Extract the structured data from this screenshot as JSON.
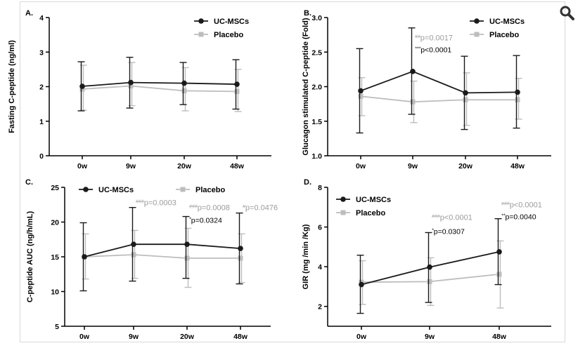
{
  "toolbar": {
    "zoom_icon": "magnifier-icon"
  },
  "colors": {
    "uc_mscs": "#1a1a1a",
    "placebo": "#bdbdbd",
    "annotation_gray": "#9b9b9b"
  },
  "chart_data": [
    {
      "panel": "A.",
      "type": "line",
      "ylabel": "Fasting C-peptide (ng/ml)",
      "categories": [
        "0w",
        "9w",
        "20w",
        "48w"
      ],
      "ylim": [
        0,
        4
      ],
      "yticks": [
        "0",
        "1",
        "2",
        "3",
        "4"
      ],
      "legend": [
        "UC-MSCs",
        "Placebo"
      ],
      "legend_position": "top-right",
      "series": [
        {
          "name": "UC-MSCs",
          "values": [
            2.01,
            2.12,
            2.1,
            2.07
          ],
          "err_low": [
            1.3,
            1.38,
            1.48,
            1.35
          ],
          "err_high": [
            2.72,
            2.85,
            2.7,
            2.78
          ]
        },
        {
          "name": "Placebo",
          "values": [
            1.93,
            2.02,
            1.88,
            1.86
          ],
          "err_low": [
            1.32,
            1.45,
            1.3,
            1.28
          ],
          "err_high": [
            2.62,
            2.7,
            2.55,
            2.5
          ]
        }
      ],
      "annotations": []
    },
    {
      "panel": "B.",
      "type": "line",
      "ylabel": "Glucagon stimulated C-peptide (Fold)",
      "categories": [
        "0w",
        "9w",
        "20w",
        "48w"
      ],
      "ylim": [
        1.0,
        3.0
      ],
      "yticks": [
        "1.0",
        "1.5",
        "2.0",
        "2.5",
        "3.0"
      ],
      "legend": [
        "UC-MSCs",
        "Placebo"
      ],
      "legend_position": "top-right",
      "series": [
        {
          "name": "UC-MSCs",
          "values": [
            1.94,
            2.22,
            1.91,
            1.92
          ],
          "err_low": [
            1.33,
            1.6,
            1.38,
            1.4
          ],
          "err_high": [
            2.55,
            2.85,
            2.44,
            2.45
          ]
        },
        {
          "name": "Placebo",
          "values": [
            1.86,
            1.78,
            1.81,
            1.81
          ],
          "err_low": [
            1.58,
            1.48,
            1.44,
            1.53
          ],
          "err_high": [
            2.13,
            2.08,
            2.2,
            2.12
          ]
        }
      ],
      "annotations": [
        {
          "sup": "##",
          "text": "p=0.0017",
          "style": "gray",
          "cat": 1,
          "value": 2.67
        },
        {
          "sup": "***",
          "text": "p<0.0001",
          "style": "black",
          "cat": 1,
          "value": 2.5
        }
      ]
    },
    {
      "panel": "C.",
      "type": "line",
      "ylabel": "C-peptide AUC (ng/h/mL)",
      "categories": [
        "0w",
        "9w",
        "20w",
        "48w"
      ],
      "ylim": [
        5,
        25
      ],
      "yticks": [
        "5",
        "10",
        "15",
        "20",
        "25"
      ],
      "legend": [
        "UC-MSCs",
        "Placebo"
      ],
      "legend_position": "top",
      "series": [
        {
          "name": "UC-MSCs",
          "values": [
            15.0,
            16.8,
            16.8,
            16.2
          ],
          "err_low": [
            10.1,
            11.5,
            11.9,
            11.1
          ],
          "err_high": [
            19.9,
            22.1,
            20.8,
            21.3
          ]
        },
        {
          "name": "Placebo",
          "values": [
            15.0,
            15.3,
            14.8,
            14.8
          ],
          "err_low": [
            11.8,
            11.9,
            10.6,
            11.3
          ],
          "err_high": [
            18.3,
            18.8,
            19.1,
            18.3
          ]
        }
      ],
      "annotations": [
        {
          "sup": "###",
          "text": "p=0.0003",
          "style": "gray",
          "cat": 1,
          "value": 22.4
        },
        {
          "sup": "###",
          "text": "p=0.0008",
          "style": "gray",
          "cat": 2,
          "value": 21.7
        },
        {
          "sup": "*",
          "text": "p=0.0324",
          "style": "black",
          "cat": 2,
          "value": 19.9
        },
        {
          "sup": "#",
          "text": "p=0.0476",
          "style": "gray",
          "cat": 3,
          "value": 21.7
        }
      ]
    },
    {
      "panel": "D.",
      "type": "line",
      "ylabel": "GIR (mg /min /Kg)",
      "categories": [
        "0w",
        "9w",
        "48w"
      ],
      "ylim": [
        1,
        8
      ],
      "yticks": [
        "2",
        "4",
        "6",
        "8"
      ],
      "legend": [
        "UC-MSCs",
        "Placebo"
      ],
      "legend_position": "top-left",
      "series": [
        {
          "name": "UC-MSCs",
          "values": [
            3.1,
            3.98,
            4.75
          ],
          "err_low": [
            1.65,
            2.2,
            3.1
          ],
          "err_high": [
            4.58,
            5.72,
            6.42
          ]
        },
        {
          "name": "Placebo",
          "values": [
            3.22,
            3.25,
            3.62
          ],
          "err_low": [
            2.1,
            2.05,
            1.92
          ],
          "err_high": [
            4.3,
            4.45,
            5.3
          ]
        }
      ],
      "annotations": [
        {
          "sup": "###",
          "text": "p<0.0001",
          "style": "gray",
          "cat": 1,
          "value": 6.35
        },
        {
          "sup": "*",
          "text": "p=0.0307",
          "style": "black",
          "cat": 1,
          "value": 5.65
        },
        {
          "sup": "###",
          "text": "p<0.0001",
          "style": "gray",
          "cat": 2,
          "value": 7.0
        },
        {
          "sup": "**",
          "text": "p=0.0040",
          "style": "black",
          "cat": 2,
          "value": 6.4
        }
      ]
    }
  ]
}
